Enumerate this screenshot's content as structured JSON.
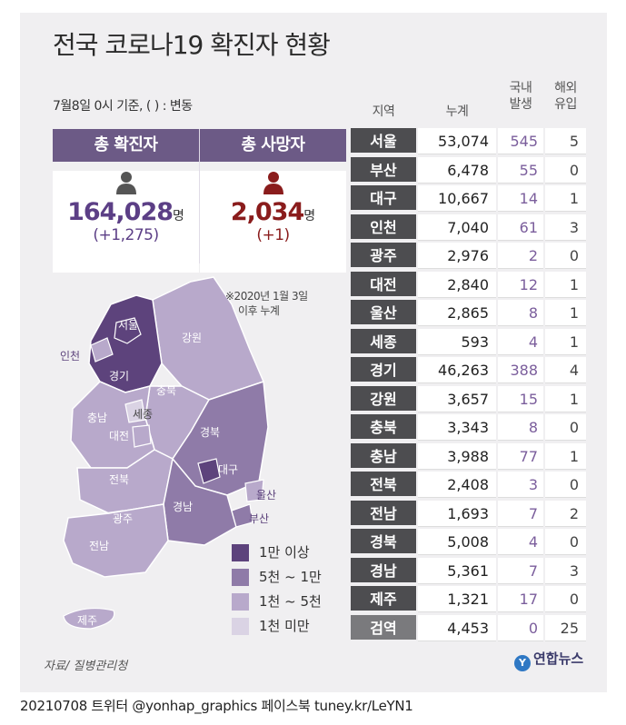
{
  "title": "전국 코로나19 확진자 현황",
  "basis": "7월8일 0시 기준, ( ) : 변동",
  "kpis": {
    "confirmed": {
      "label": "총 확진자",
      "value": "164,028",
      "unit": "명",
      "delta": "(+1,275)",
      "color": "#5c3f86"
    },
    "deaths": {
      "label": "총 사망자",
      "value": "2,034",
      "unit": "명",
      "delta": "(+1)",
      "color": "#8a1c1c"
    }
  },
  "table_headers": {
    "region": "지역",
    "total": "누계",
    "domestic": [
      "국내",
      "발생"
    ],
    "imported": [
      "해외",
      "유입"
    ]
  },
  "note": [
    "※2020년 1월 3일",
    "이후 누계"
  ],
  "legend": [
    {
      "label": "1만 이상",
      "color": "#5d437c"
    },
    {
      "label": "5천 ~ 1만",
      "color": "#8f7ba8"
    },
    {
      "label": "1천 ~ 5천",
      "color": "#b8a9cb"
    },
    {
      "label": "1천 미만",
      "color": "#dad3e4"
    }
  ],
  "map_labels": {
    "seoul": "서울",
    "incheon": "인천",
    "gyeonggi": "경기",
    "gangwon": "강원",
    "chungbuk": "충북",
    "chungnam": "충남",
    "sejong": "세종",
    "daejeon": "대전",
    "gyeongbuk": "경북",
    "daegu": "대구",
    "jeonbuk": "전북",
    "gwangju": "광주",
    "jeonnam": "전남",
    "gyeongnam": "경남",
    "ulsan": "울산",
    "busan": "부산",
    "jeju": "제주"
  },
  "source": "자료/ 질병관리청",
  "logo": "연합뉴스",
  "footer": "20210708 트위터 @yonhap_graphics  페이스북 tuney.kr/LeYN1",
  "chart_data": {
    "type": "table",
    "columns": [
      "지역",
      "누계",
      "국내 발생",
      "해외 유입"
    ],
    "rows": [
      {
        "region": "서울",
        "total": "53,074",
        "domestic": "545",
        "imported": "5"
      },
      {
        "region": "부산",
        "total": "6,478",
        "domestic": "55",
        "imported": "0"
      },
      {
        "region": "대구",
        "total": "10,667",
        "domestic": "14",
        "imported": "1"
      },
      {
        "region": "인천",
        "total": "7,040",
        "domestic": "61",
        "imported": "3"
      },
      {
        "region": "광주",
        "total": "2,976",
        "domestic": "2",
        "imported": "0"
      },
      {
        "region": "대전",
        "total": "2,840",
        "domestic": "12",
        "imported": "1"
      },
      {
        "region": "울산",
        "total": "2,865",
        "domestic": "8",
        "imported": "1"
      },
      {
        "region": "세종",
        "total": "593",
        "domestic": "4",
        "imported": "1"
      },
      {
        "region": "경기",
        "total": "46,263",
        "domestic": "388",
        "imported": "4"
      },
      {
        "region": "강원",
        "total": "3,657",
        "domestic": "15",
        "imported": "1"
      },
      {
        "region": "충북",
        "total": "3,343",
        "domestic": "8",
        "imported": "0"
      },
      {
        "region": "충남",
        "total": "3,988",
        "domestic": "77",
        "imported": "1"
      },
      {
        "region": "전북",
        "total": "2,408",
        "domestic": "3",
        "imported": "0"
      },
      {
        "region": "전남",
        "total": "1,693",
        "domestic": "7",
        "imported": "2"
      },
      {
        "region": "경북",
        "total": "5,008",
        "domestic": "4",
        "imported": "0"
      },
      {
        "region": "경남",
        "total": "5,361",
        "domestic": "7",
        "imported": "3"
      },
      {
        "region": "제주",
        "total": "1,321",
        "domestic": "17",
        "imported": "0"
      },
      {
        "region": "검역",
        "total": "4,453",
        "domestic": "0",
        "imported": "25"
      }
    ]
  }
}
